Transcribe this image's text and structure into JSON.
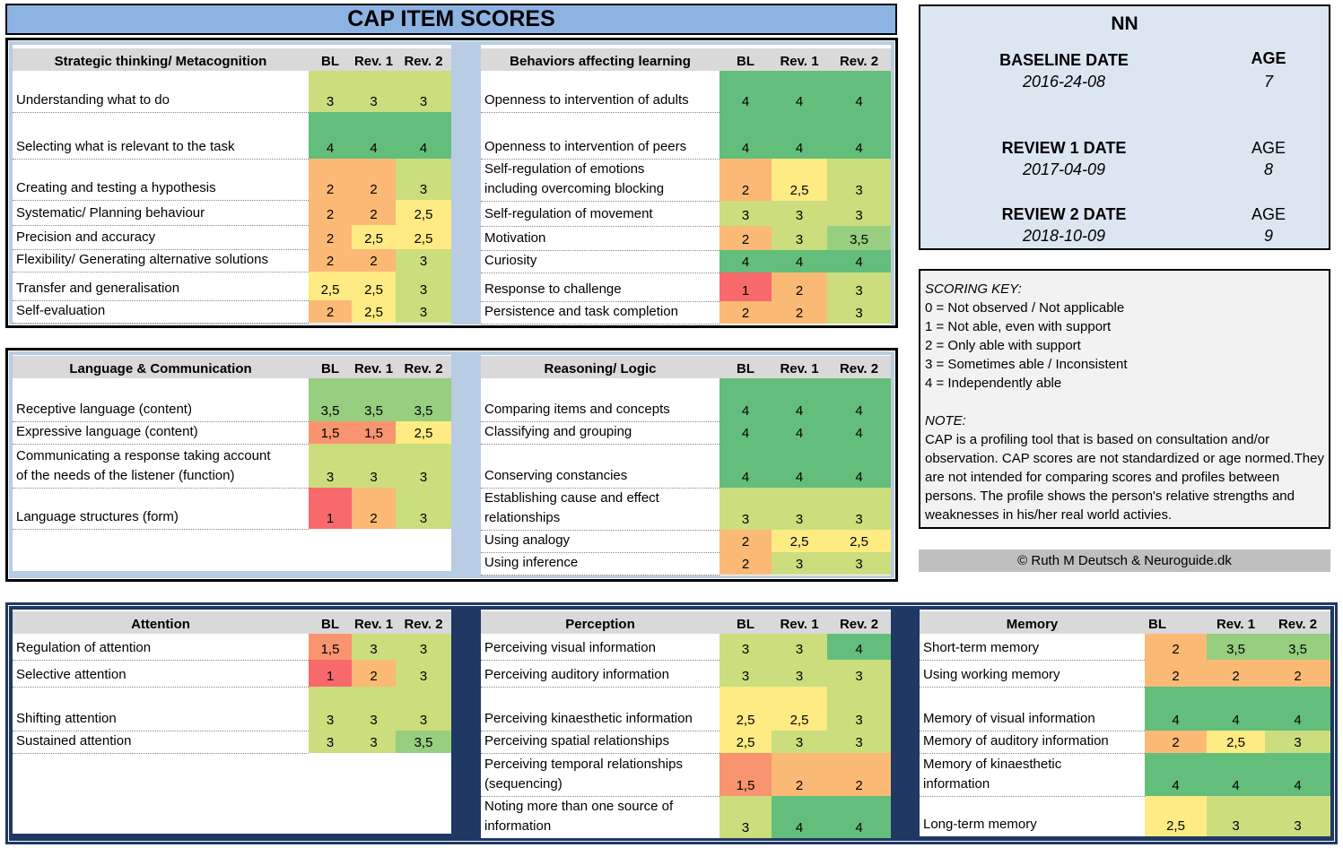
{
  "title": "CAP ITEM SCORES",
  "header_cols": [
    "BL",
    "Rev. 1",
    "Rev. 2"
  ],
  "info": {
    "name": "NN",
    "rows": [
      {
        "label": "BASELINE DATE",
        "date": "2016-24-08",
        "age_label": "AGE",
        "age": "7"
      },
      {
        "label": "REVIEW 1 DATE",
        "date": "2017-04-09",
        "age_label": "AGE",
        "age": "8"
      },
      {
        "label": "REVIEW 2 DATE",
        "date": "2018-10-09",
        "age_label": "AGE",
        "age": "9"
      }
    ]
  },
  "key": {
    "heading": "SCORING KEY:",
    "items": [
      "0 = Not observed / Not applicable",
      "1 = Not able, even with support",
      "2 = Only able with support",
      "3 = Sometimes able / Inconsistent",
      "4 = Independently able"
    ],
    "note_heading": "NOTE:",
    "note": "CAP is a profiling tool that is based on consultation and/or observation. CAP scores are not standardized or age normed.They are not intended for comparing scores and profiles between  persons. The profile shows the person's relative strengths and weaknesses in his/her real world activies."
  },
  "copyright": "© Ruth M Deutsch & Neuroguide.dk",
  "sections": {
    "strategic": {
      "category": "Strategic thinking/ Metacognition",
      "rows": [
        {
          "label": "Understanding what to do",
          "scores": [
            "3",
            "3",
            "3"
          ]
        },
        {
          "label": "Selecting what is relevant to the task",
          "scores": [
            "4",
            "4",
            "4"
          ]
        },
        {
          "label": "Creating and testing a hypothesis",
          "scores": [
            "2",
            "2",
            "3"
          ]
        },
        {
          "label": "Systematic/ Planning behaviour",
          "scores": [
            "2",
            "2",
            "2,5"
          ]
        },
        {
          "label": "Precision and accuracy",
          "scores": [
            "2",
            "2,5",
            "2,5"
          ]
        },
        {
          "label": "Flexibility/ Generating alternative solutions",
          "scores": [
            "2",
            "2",
            "3"
          ]
        },
        {
          "label": "Transfer and generalisation",
          "scores": [
            "2,5",
            "2,5",
            "3"
          ]
        },
        {
          "label": "Self-evaluation",
          "scores": [
            "2",
            "2,5",
            "3"
          ]
        }
      ]
    },
    "behaviors": {
      "category": "Behaviors affecting learning",
      "rows": [
        {
          "label": "Openness to intervention of adults",
          "scores": [
            "4",
            "4",
            "4"
          ]
        },
        {
          "label": "Openness to intervention of peers",
          "scores": [
            "4",
            "4",
            "4"
          ]
        },
        {
          "label": "Self-regulation of emotions",
          "label2": "including overcoming blocking",
          "scores": [
            "2",
            "2,5",
            "3"
          ]
        },
        {
          "label": "Self-regulation of movement",
          "scores": [
            "3",
            "3",
            "3"
          ]
        },
        {
          "label": "Motivation",
          "scores": [
            "2",
            "3",
            "3,5"
          ]
        },
        {
          "label": "Curiosity",
          "scores": [
            "4",
            "4",
            "4"
          ]
        },
        {
          "label": "Response to challenge",
          "scores": [
            "1",
            "2",
            "3"
          ]
        },
        {
          "label": "Persistence and task completion",
          "scores": [
            "2",
            "2",
            "3"
          ]
        }
      ]
    },
    "language": {
      "category": "Language & Communication",
      "rows": [
        {
          "label": "Receptive language (content)",
          "scores": [
            "3,5",
            "3,5",
            "3,5"
          ]
        },
        {
          "label": "Expressive language (content)",
          "scores": [
            "1,5",
            "1,5",
            "2,5"
          ]
        },
        {
          "label": "Communicating a response taking account",
          "label2": "of the needs of the listener (function)",
          "scores": [
            "3",
            "3",
            "3"
          ]
        },
        {
          "label": "Language structures (form)",
          "scores": [
            "1",
            "2",
            "3"
          ]
        }
      ]
    },
    "reasoning": {
      "category": "Reasoning/ Logic",
      "rows": [
        {
          "label": "Comparing items and concepts",
          "scores": [
            "4",
            "4",
            "4"
          ]
        },
        {
          "label": "Classifying and grouping",
          "scores": [
            "4",
            "4",
            "4"
          ]
        },
        {
          "label": "Conserving constancies",
          "scores": [
            "4",
            "4",
            "4"
          ]
        },
        {
          "label": "Establishing cause and effect",
          "label2": "relationships",
          "scores": [
            "3",
            "3",
            "3"
          ]
        },
        {
          "label": "Using analogy",
          "scores": [
            "2",
            "2,5",
            "2,5"
          ]
        },
        {
          "label": "Using inference",
          "scores": [
            "2",
            "3",
            "3"
          ]
        }
      ]
    },
    "attention": {
      "category": "Attention",
      "rows": [
        {
          "label": "Regulation of attention",
          "scores": [
            "1,5",
            "3",
            "3"
          ]
        },
        {
          "label": "Selective attention",
          "scores": [
            "1",
            "2",
            "3"
          ]
        },
        {
          "label": "Shifting attention",
          "scores": [
            "3",
            "3",
            "3"
          ]
        },
        {
          "label": "Sustained attention",
          "scores": [
            "3",
            "3",
            "3,5"
          ]
        }
      ]
    },
    "perception": {
      "category": "Perception",
      "rows": [
        {
          "label": "Perceiving visual information",
          "scores": [
            "3",
            "3",
            "4"
          ]
        },
        {
          "label": "Perceiving auditory information",
          "scores": [
            "3",
            "3",
            "3"
          ]
        },
        {
          "label": "Perceiving kinaesthetic information",
          "scores": [
            "2,5",
            "2,5",
            "3"
          ]
        },
        {
          "label": "Perceiving spatial relationships",
          "scores": [
            "2,5",
            "3",
            "3"
          ]
        },
        {
          "label": "Perceiving temporal relationships",
          "label2": "(sequencing)",
          "scores": [
            "1,5",
            "2",
            "2"
          ]
        },
        {
          "label": "Noting more than one source of",
          "label2": "information",
          "scores": [
            "3",
            "4",
            "4"
          ]
        }
      ]
    },
    "memory": {
      "category": "Memory",
      "rows": [
        {
          "label": "Short-term memory",
          "scores": [
            "2",
            "3,5",
            "3,5"
          ]
        },
        {
          "label": "Using working memory",
          "scores": [
            "2",
            "2",
            "2"
          ]
        },
        {
          "label": "Memory of visual information",
          "scores": [
            "4",
            "4",
            "4"
          ]
        },
        {
          "label": "Memory of auditory information",
          "scores": [
            "2",
            "2,5",
            "3"
          ]
        },
        {
          "label": "Memory of kinaesthetic",
          "label2": "information",
          "scores": [
            "4",
            "4",
            "4"
          ]
        },
        {
          "label": "Long-term memory",
          "scores": [
            "2,5",
            "3",
            "3"
          ]
        }
      ]
    }
  }
}
